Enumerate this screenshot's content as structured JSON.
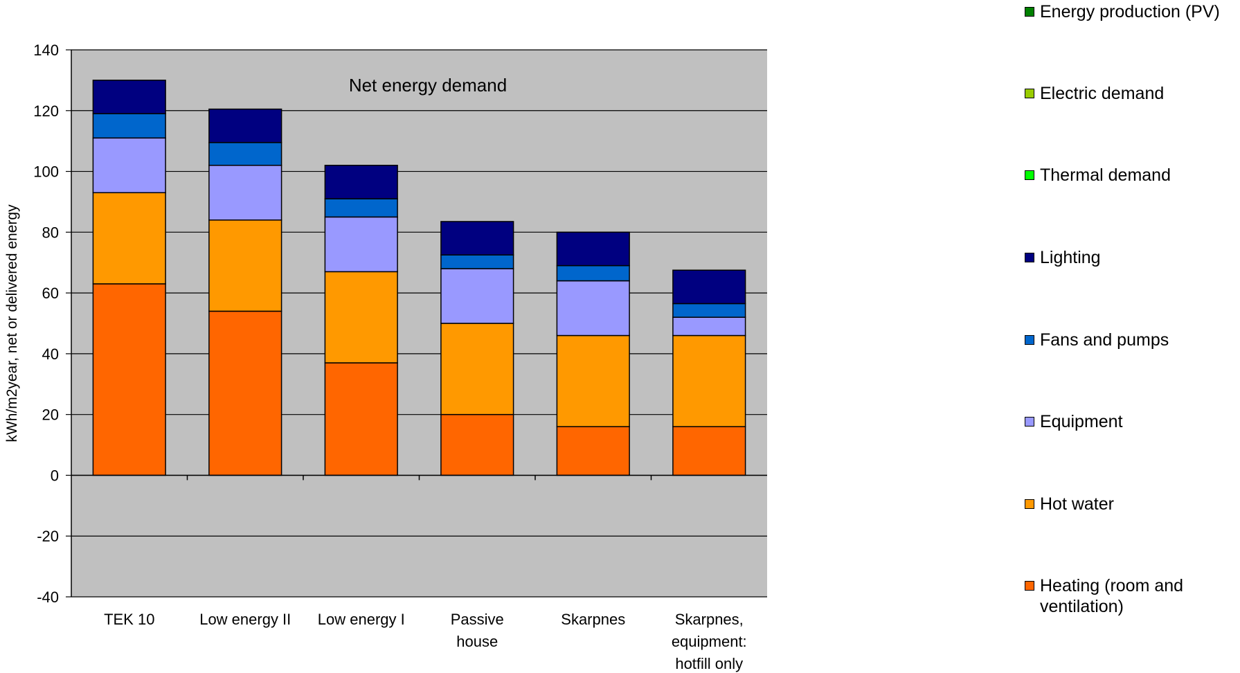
{
  "chart_data": {
    "type": "bar",
    "stacked": true,
    "title": "",
    "annotation": "Net energy demand",
    "xlabel": "",
    "ylabel": "kWh/m2year, net or delivered energy",
    "ylim": [
      -40,
      140
    ],
    "yticks": [
      140,
      120,
      100,
      80,
      60,
      40,
      20,
      0,
      -20,
      -40
    ],
    "grid": true,
    "legend_position": "right",
    "categories": [
      "TEK 10",
      "Low energy II",
      "Low energy I",
      "Passive house",
      "Skarpnes",
      "Skarpnes, equipment: hotfill only"
    ],
    "series": [
      {
        "name": "Heating (room and ventilation)",
        "color": "#FF6600",
        "values": [
          63,
          54,
          37,
          20,
          16,
          16
        ]
      },
      {
        "name": "Hot water",
        "color": "#FF9900",
        "values": [
          30,
          30,
          30,
          30,
          30,
          30
        ]
      },
      {
        "name": "Equipment",
        "color": "#9999FF",
        "values": [
          18,
          18,
          18,
          18,
          18,
          6
        ]
      },
      {
        "name": "Fans and pumps",
        "color": "#0066CC",
        "values": [
          8,
          7.5,
          6,
          4.5,
          5,
          4.5
        ]
      },
      {
        "name": "Lighting",
        "color": "#000080",
        "values": [
          11,
          11,
          11,
          11,
          11,
          11
        ]
      },
      {
        "name": "Thermal demand",
        "color": "#00FF00",
        "values": [
          0,
          0,
          0,
          0,
          0,
          0
        ]
      },
      {
        "name": "Electric demand",
        "color": "#99CC00",
        "values": [
          0,
          0,
          0,
          0,
          0,
          0
        ]
      },
      {
        "name": "Energy production (PV)",
        "color": "#008000",
        "values": [
          0,
          0,
          0,
          0,
          0,
          0
        ]
      }
    ]
  },
  "legend": [
    {
      "label": "Energy production (PV)",
      "color": "#008000"
    },
    {
      "label": "Electric demand",
      "color": "#99CC00"
    },
    {
      "label": "Thermal demand",
      "color": "#00FF00"
    },
    {
      "label": "Lighting",
      "color": "#000080"
    },
    {
      "label": "Fans and pumps",
      "color": "#0066CC"
    },
    {
      "label": "Equipment",
      "color": "#9999FF"
    },
    {
      "label": "Hot water",
      "color": "#FF9900"
    },
    {
      "label": "Heating (room and ventilation)",
      "color": "#FF6600"
    }
  ],
  "colors": {
    "plot_background": "#C0C0C0",
    "gridline": "#000000"
  }
}
